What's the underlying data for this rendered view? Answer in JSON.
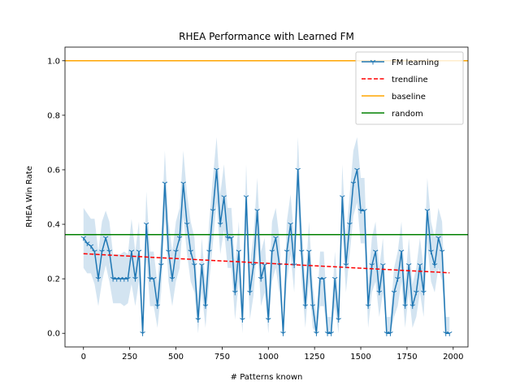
{
  "chart_data": {
    "type": "line",
    "title": "RHEA Performance with Learned FM",
    "xlabel": "# Patterns known",
    "ylabel": "RHEA Win Rate",
    "xlim": [
      -100,
      2080
    ],
    "ylim": [
      -0.05,
      1.05
    ],
    "xticks": [
      "0",
      "250",
      "500",
      "750",
      "1000",
      "1250",
      "1500",
      "1750",
      "2000"
    ],
    "xtick_values": [
      0,
      250,
      500,
      750,
      1000,
      1250,
      1500,
      1750,
      2000
    ],
    "yticks": [
      "0.0",
      "0.2",
      "0.4",
      "0.6",
      "0.8",
      "1.0"
    ],
    "ytick_values": [
      0.0,
      0.2,
      0.4,
      0.6,
      0.8,
      1.0
    ],
    "legend_position": "top-right",
    "legend": [
      "FM learning",
      "trendline",
      "baseline",
      "random"
    ],
    "colors": {
      "fm": "#1f77b4",
      "band": "#aecde6",
      "trend": "#ff0000",
      "baseline": "#ffa500",
      "random": "#008000"
    },
    "series": [
      {
        "name": "FM learning",
        "x": [
          0,
          20,
          40,
          60,
          80,
          100,
          120,
          140,
          160,
          180,
          200,
          220,
          240,
          260,
          280,
          300,
          320,
          340,
          360,
          380,
          400,
          420,
          440,
          460,
          480,
          500,
          520,
          540,
          560,
          580,
          600,
          620,
          640,
          660,
          680,
          700,
          720,
          740,
          760,
          780,
          800,
          820,
          840,
          860,
          880,
          900,
          920,
          940,
          960,
          980,
          1000,
          1020,
          1040,
          1060,
          1080,
          1100,
          1120,
          1140,
          1160,
          1180,
          1200,
          1220,
          1240,
          1260,
          1280,
          1300,
          1320,
          1340,
          1360,
          1380,
          1400,
          1420,
          1440,
          1460,
          1480,
          1500,
          1520,
          1540,
          1560,
          1580,
          1600,
          1620,
          1640,
          1660,
          1680,
          1700,
          1720,
          1740,
          1760,
          1780,
          1800,
          1820,
          1840,
          1860,
          1880,
          1900,
          1920,
          1940,
          1960,
          1980
        ],
        "y": [
          0.35,
          0.33,
          0.32,
          0.3,
          0.2,
          0.3,
          0.35,
          0.3,
          0.2,
          0.2,
          0.2,
          0.2,
          0.2,
          0.3,
          0.2,
          0.3,
          0.0,
          0.4,
          0.2,
          0.2,
          0.1,
          0.25,
          0.55,
          0.3,
          0.2,
          0.3,
          0.35,
          0.55,
          0.4,
          0.3,
          0.25,
          0.05,
          0.25,
          0.1,
          0.3,
          0.45,
          0.6,
          0.4,
          0.5,
          0.35,
          0.35,
          0.15,
          0.3,
          0.05,
          0.5,
          0.15,
          0.25,
          0.45,
          0.2,
          0.25,
          0.05,
          0.3,
          0.35,
          0.25,
          0.0,
          0.3,
          0.4,
          0.25,
          0.6,
          0.3,
          0.1,
          0.3,
          0.1,
          0.0,
          0.2,
          0.2,
          0.0,
          0.0,
          0.2,
          0.05,
          0.5,
          0.25,
          0.4,
          0.55,
          0.6,
          0.45,
          0.45,
          0.1,
          0.25,
          0.3,
          0.15,
          0.25,
          0.0,
          0.0,
          0.15,
          0.2,
          0.3,
          0.1,
          0.25,
          0.1,
          0.15,
          0.25,
          0.15,
          0.45,
          0.3,
          0.25,
          0.35,
          0.3,
          0.0,
          0.0
        ],
        "err": [
          0.11,
          0.11,
          0.1,
          0.12,
          0.1,
          0.11,
          0.1,
          0.11,
          0.09,
          0.09,
          0.09,
          0.1,
          0.09,
          0.12,
          0.1,
          0.11,
          0.08,
          0.12,
          0.1,
          0.1,
          0.08,
          0.1,
          0.12,
          0.11,
          0.1,
          0.11,
          0.11,
          0.12,
          0.11,
          0.11,
          0.1,
          0.07,
          0.1,
          0.08,
          0.11,
          0.12,
          0.12,
          0.11,
          0.12,
          0.11,
          0.11,
          0.1,
          0.11,
          0.07,
          0.12,
          0.1,
          0.11,
          0.12,
          0.1,
          0.1,
          0.07,
          0.11,
          0.11,
          0.1,
          0.06,
          0.11,
          0.11,
          0.1,
          0.12,
          0.11,
          0.08,
          0.11,
          0.08,
          0.06,
          0.1,
          0.1,
          0.06,
          0.06,
          0.1,
          0.07,
          0.12,
          0.1,
          0.11,
          0.12,
          0.12,
          0.12,
          0.12,
          0.08,
          0.1,
          0.11,
          0.09,
          0.1,
          0.06,
          0.06,
          0.09,
          0.1,
          0.11,
          0.08,
          0.1,
          0.08,
          0.09,
          0.1,
          0.09,
          0.12,
          0.11,
          0.1,
          0.11,
          0.11,
          0.06,
          0.06
        ]
      },
      {
        "name": "trendline",
        "x": [
          0,
          1980
        ],
        "y": [
          0.292,
          0.222
        ]
      },
      {
        "name": "baseline",
        "y": 1.0
      },
      {
        "name": "random",
        "y": 0.362
      }
    ]
  }
}
